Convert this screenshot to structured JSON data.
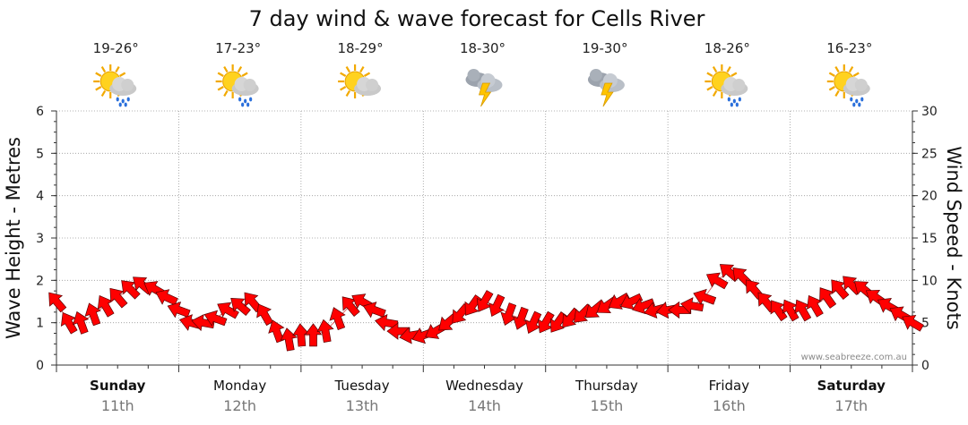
{
  "chart_data": {
    "type": "line",
    "title": "7 day wind & wave forecast for Cells River",
    "ylabel_left": "Wave Height - Metres",
    "ylabel_right": "Wind Speed - Knots",
    "left_ylim": [
      0,
      6
    ],
    "left_ticks": [
      "0",
      "1",
      "2",
      "3",
      "4",
      "5",
      "6"
    ],
    "right_ylim": [
      0,
      30
    ],
    "right_ticks": [
      "0",
      "5",
      "10",
      "15",
      "20",
      "25",
      "30"
    ],
    "grid": true,
    "credit": "www.seabreeze.com.au",
    "days": [
      {
        "name": "Sunday",
        "date": "11th",
        "temp": "19-26°",
        "icon": "partly-cloudy-showers-icon",
        "bold": true
      },
      {
        "name": "Monday",
        "date": "12th",
        "temp": "17-23°",
        "icon": "partly-cloudy-showers-icon",
        "bold": false
      },
      {
        "name": "Tuesday",
        "date": "13th",
        "temp": "18-29°",
        "icon": "partly-cloudy-icon",
        "bold": false
      },
      {
        "name": "Wednesday",
        "date": "14th",
        "temp": "18-30°",
        "icon": "thunderstorm-icon",
        "bold": false
      },
      {
        "name": "Thursday",
        "date": "15th",
        "temp": "19-30°",
        "icon": "thunderstorm-icon",
        "bold": false
      },
      {
        "name": "Friday",
        "date": "16th",
        "temp": "18-26°",
        "icon": "partly-cloudy-showers-icon",
        "bold": false
      },
      {
        "name": "Saturday",
        "date": "17th",
        "temp": "16-23°",
        "icon": "partly-cloudy-showers-icon",
        "bold": true
      }
    ],
    "series": [
      {
        "name": "Wind Speed - Knots",
        "color": "#ff0000",
        "marker": "wind-direction-arrow",
        "x_days": [
          0.0,
          0.1,
          0.2,
          0.3,
          0.4,
          0.5,
          0.6,
          0.7,
          0.8,
          0.9,
          1.0,
          1.1,
          1.2,
          1.3,
          1.4,
          1.5,
          1.6,
          1.7,
          1.8,
          1.9,
          2.0,
          2.1,
          2.2,
          2.3,
          2.4,
          2.5,
          2.6,
          2.7,
          2.8,
          2.9,
          3.0,
          3.1,
          3.2,
          3.3,
          3.4,
          3.5,
          3.6,
          3.7,
          3.8,
          3.9,
          4.0,
          4.1,
          4.2,
          4.3,
          4.4,
          4.5,
          4.6,
          4.7,
          4.8,
          4.9,
          5.0,
          5.1,
          5.2,
          5.3,
          5.4,
          5.5,
          5.6,
          5.7,
          5.8,
          5.9,
          6.0,
          6.1,
          6.2,
          6.3,
          6.4,
          6.5,
          6.6,
          6.7,
          6.8,
          6.9,
          7.0
        ],
        "values": [
          7.5,
          5,
          5,
          6,
          7,
          8,
          9,
          9.5,
          9,
          8,
          6.5,
          5,
          5,
          5.5,
          6.5,
          7,
          7.5,
          6,
          4,
          3,
          3.5,
          3.5,
          4,
          5.5,
          7,
          7.5,
          6.5,
          5,
          4,
          3.5,
          3.5,
          4,
          5,
          6,
          7,
          7.5,
          7,
          6,
          5.5,
          5,
          5,
          5,
          5.5,
          6,
          6.5,
          7,
          7.5,
          7.5,
          7,
          6.5,
          6.5,
          6.5,
          7,
          8,
          10,
          11,
          10.5,
          9,
          7.5,
          6.5,
          6.5,
          6.5,
          7,
          8,
          9,
          9.5,
          9,
          8,
          7,
          6,
          5
        ]
      },
      {
        "name": "Wave Height - Metres",
        "color": "#ff0000",
        "marker": "none",
        "x_days": [],
        "values": []
      }
    ],
    "wind_direction_deg": [
      320,
      330,
      340,
      340,
      330,
      320,
      315,
      310,
      300,
      295,
      290,
      285,
      280,
      290,
      300,
      310,
      320,
      330,
      340,
      350,
      355,
      0,
      350,
      340,
      320,
      300,
      290,
      280,
      270,
      260,
      250,
      240,
      230,
      220,
      215,
      210,
      205,
      200,
      200,
      205,
      210,
      215,
      220,
      225,
      230,
      235,
      240,
      245,
      250,
      255,
      260,
      270,
      280,
      290,
      300,
      310,
      315,
      320,
      320,
      325,
      330,
      330,
      330,
      325,
      320,
      315,
      310,
      305,
      300,
      300,
      300
    ]
  }
}
